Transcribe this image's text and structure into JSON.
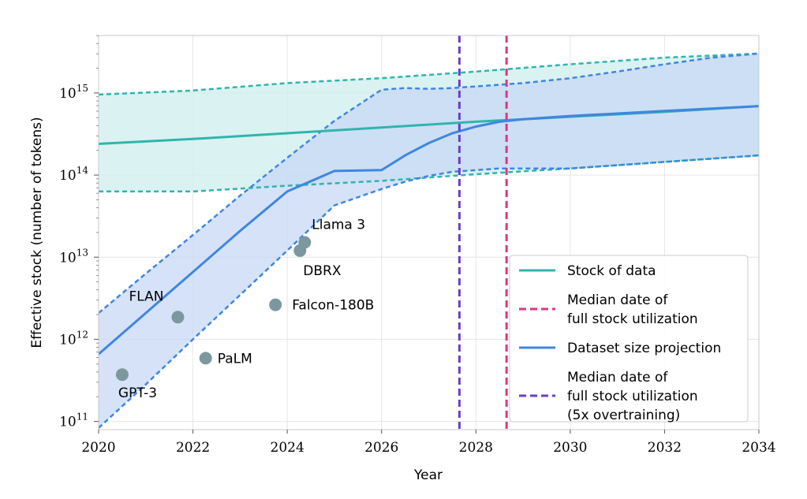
{
  "chart_data": {
    "type": "line",
    "title": "",
    "xlabel": "Year",
    "ylabel": "Effective stock (number of tokens)",
    "xlim": [
      2020,
      2034
    ],
    "ylim_log10": [
      10.9,
      15.7
    ],
    "y_scale": "log",
    "x_ticks": [
      "2020",
      "2022",
      "2024",
      "2026",
      "2028",
      "2030",
      "2032",
      "2034"
    ],
    "y_ticks": [
      {
        "base": "10",
        "exp": "11",
        "log10": 11
      },
      {
        "base": "10",
        "exp": "12",
        "log10": 12
      },
      {
        "base": "10",
        "exp": "13",
        "log10": 13
      },
      {
        "base": "10",
        "exp": "14",
        "log10": 14
      },
      {
        "base": "10",
        "exp": "15",
        "log10": 15
      }
    ],
    "grid": true,
    "legend_position": "lower-right",
    "stock": {
      "name": "Stock of data",
      "color": "#2fb5ad",
      "band_color": "#cdeeed",
      "x": [
        2020,
        2022,
        2024,
        2026,
        2028,
        2030,
        2032,
        2034
      ],
      "median_log10": [
        14.38,
        14.44,
        14.51,
        14.58,
        14.65,
        14.71,
        14.77,
        14.84
      ],
      "upper_log10": [
        14.98,
        15.03,
        15.12,
        15.18,
        15.26,
        15.35,
        15.43,
        15.48
      ],
      "lower_log10": [
        13.8,
        13.8,
        13.87,
        13.93,
        14.01,
        14.08,
        14.16,
        14.24
      ]
    },
    "projection": {
      "name": "Dataset size projection",
      "color": "#3f86e0",
      "band_color": "#c7d8f5",
      "x": [
        2020,
        2021,
        2022,
        2023,
        2024,
        2025,
        2026,
        2026.5,
        2027,
        2027.5,
        2028,
        2028.5,
        2029,
        2030,
        2031,
        2032,
        2033,
        2034
      ],
      "median_log10": [
        11.82,
        12.32,
        12.82,
        13.32,
        13.8,
        14.05,
        14.06,
        14.24,
        14.39,
        14.51,
        14.59,
        14.65,
        14.68,
        14.72,
        14.75,
        14.78,
        14.81,
        14.84
      ],
      "upper_log10": [
        12.32,
        12.8,
        13.27,
        13.75,
        14.21,
        14.66,
        15.04,
        15.06,
        15.05,
        15.06,
        15.08,
        15.1,
        15.12,
        15.18,
        15.26,
        15.35,
        15.43,
        15.48
      ],
      "lower_log10": [
        10.92,
        11.45,
        12.0,
        12.54,
        13.08,
        13.63,
        13.83,
        13.92,
        13.99,
        14.04,
        14.06,
        14.08,
        14.08,
        14.08,
        14.12,
        14.16,
        14.2,
        14.24
      ]
    },
    "vlines": [
      {
        "name": "Median date of full stock utilization",
        "x": 2028.65,
        "color": "#e0357f"
      },
      {
        "name": "Median date of full stock utilization (5x overtraining)",
        "x": 2027.65,
        "color": "#6a3ec9"
      }
    ],
    "models": [
      {
        "name": "GPT-3",
        "x": 2020.5,
        "log10": 11.57
      },
      {
        "name": "FLAN",
        "x": 2021.68,
        "log10": 12.27
      },
      {
        "name": "PaLM",
        "x": 2022.27,
        "log10": 11.77
      },
      {
        "name": "Falcon-180B",
        "x": 2023.75,
        "log10": 12.42
      },
      {
        "name": "DBRX",
        "x": 2024.27,
        "log10": 13.08
      },
      {
        "name": "Llama 3",
        "x": 2024.37,
        "log10": 13.18
      }
    ],
    "model_point_color": "#7c989e",
    "legend": [
      {
        "lines": [
          "Stock of data"
        ],
        "color": "#2fb5ad",
        "dash": false
      },
      {
        "lines": [
          "Median date of",
          "full stock utilization"
        ],
        "color": "#e0357f",
        "dash": true
      },
      {
        "lines": [
          "Dataset size projection"
        ],
        "color": "#3f86e0",
        "dash": false
      },
      {
        "lines": [
          "Median date of",
          "full stock utilization",
          "(5x overtraining)"
        ],
        "color": "#6a3ec9",
        "dash": true
      }
    ]
  }
}
